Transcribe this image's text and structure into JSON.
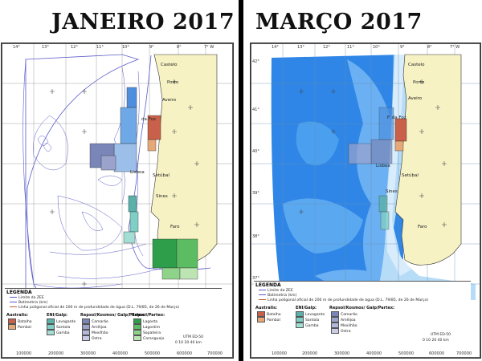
{
  "titles": {
    "left": "JANEIRO 2017",
    "right": "MARÇO 2017"
  },
  "lon_labels": [
    "14°",
    "13°",
    "12°",
    "11°",
    "10°",
    "9°",
    "8°",
    "7° W"
  ],
  "lat_labels": [
    "42°",
    "41°",
    "40°",
    "39°",
    "38°",
    "37°"
  ],
  "x_coords": [
    "100000",
    "200000",
    "300000",
    "400000",
    "500000",
    "600000",
    "700000"
  ],
  "cities": {
    "castelo": "Castelo",
    "porto": "Porto",
    "aveiro": "Aveiro",
    "figfoz": "F. da Foz",
    "figfoz_left": "da Foz",
    "lisboa": "Lisboa",
    "setubal": "Setúbal",
    "sines": "Sines",
    "faro": "Faro"
  },
  "legend": {
    "header": "LEGENDA",
    "lines": [
      "Limite da ZEE",
      "Batimetria (km)",
      "Linha poligonal oficial de 200 m de profundidade de água (D.L. 79/85, de 26 de Março)"
    ],
    "groups": [
      {
        "title": "Australis:",
        "items": [
          {
            "label": "Batalha",
            "color": "#c8604a"
          },
          {
            "label": "Pombal",
            "color": "#e7a878"
          }
        ]
      },
      {
        "title": "ENI/Galp:",
        "items": [
          {
            "label": "Lavagante",
            "color": "#5bb0a8"
          },
          {
            "label": "Santola",
            "color": "#7fcfc6"
          },
          {
            "label": "Gamba",
            "color": "#a4ddd3"
          }
        ]
      },
      {
        "title": "Repsol/Kosmos/ Galp/Partex:",
        "items": [
          {
            "label": "Camarão",
            "color": "#7a86b8"
          },
          {
            "label": "Amêijoa",
            "color": "#9aa3cc"
          },
          {
            "label": "Mexilhão",
            "color": "#b3b9da"
          },
          {
            "label": "Ostra",
            "color": "#c8cce4"
          }
        ]
      },
      {
        "title": "Repsol/Partex:",
        "items": [
          {
            "label": "Lagosta",
            "color": "#2f9e4a"
          },
          {
            "label": "Lagostim",
            "color": "#5cbc62"
          },
          {
            "label": "Sapateira",
            "color": "#8fd28a"
          },
          {
            "label": "Caranguejo",
            "color": "#bde4b3"
          }
        ]
      }
    ],
    "groups_right": [
      {
        "title": "Australis:",
        "items": [
          {
            "label": "Batalha",
            "color": "#c8604a"
          },
          {
            "label": "Pombal",
            "color": "#e7a878"
          }
        ]
      },
      {
        "title": "ENI/Galp:",
        "items": [
          {
            "label": "Lavagante",
            "color": "#5bb0a8"
          },
          {
            "label": "Santola",
            "color": "#7fcfc6"
          },
          {
            "label": "Gamba",
            "color": "#a4ddd3"
          }
        ]
      },
      {
        "title": "Repsol/Kosmos/ Galp/Partex:",
        "items": [
          {
            "label": "Camarão",
            "color": "#7a86b8"
          },
          {
            "label": "Amêijoa",
            "color": "#9aa3cc"
          },
          {
            "label": "Mexilhão",
            "color": "#b3b9da"
          },
          {
            "label": "Ostra",
            "color": "#c8cce4"
          }
        ]
      }
    ],
    "scale": "UTM ED-50",
    "scale_km": "0   10   20   40 km"
  },
  "colors": {
    "land": "#f6f2c4",
    "ocean_deep": "#2f86e6",
    "ocean_mid": "#6ab0f2",
    "ocean_shallow": "#b6dcf8",
    "contour": "#5a5acc",
    "grid": "#8a8a8a"
  }
}
